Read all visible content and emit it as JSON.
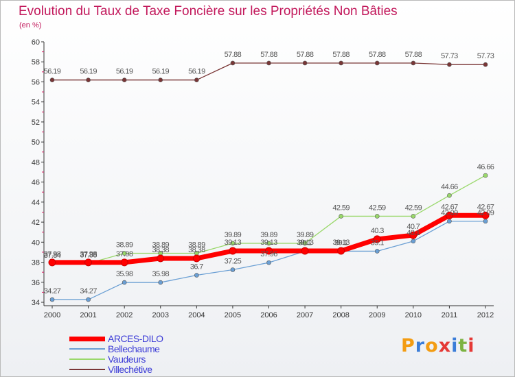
{
  "title": "Evolution du Taux de Taxe Foncière sur les Propriétés Non Bâties",
  "subtitle": "(en %)",
  "logo": {
    "text": "Proxiti",
    "letters": [
      "P",
      "r",
      "o",
      "x",
      "i",
      "t",
      "i"
    ],
    "colors": [
      "#f39c12",
      "#3b7dd8",
      "#f39c12",
      "#e53935",
      "#3b7dd8",
      "#7cb342",
      "#e53935"
    ]
  },
  "chart_data": {
    "type": "line",
    "x": [
      "2000",
      "2001",
      "2002",
      "2003",
      "2004",
      "2005",
      "2006",
      "2007",
      "2008",
      "2009",
      "2010",
      "2011",
      "2012"
    ],
    "ylim": [
      34,
      60
    ],
    "yticks": [
      "34",
      "36",
      "38",
      "40",
      "42",
      "44",
      "46",
      "48",
      "50",
      "52",
      "54",
      "56",
      "58",
      "60"
    ],
    "grid": false,
    "legend_position": "bottom-left",
    "series": [
      {
        "name": "ARCES-DILO",
        "color": "#ff0000",
        "values": [
          37.98,
          37.98,
          37.98,
          38.38,
          38.38,
          39.13,
          39.13,
          39.13,
          39.13,
          40.3,
          40.7,
          42.67,
          42.67
        ],
        "labels": [
          "37.98",
          "37.98",
          "37.98",
          "38.38",
          "38.38",
          "39.13",
          "39.13",
          "39.13",
          "39.13",
          "40.3",
          "40.7",
          "42.67",
          "42.67"
        ]
      },
      {
        "name": "Bellechaume",
        "color": "#6a9fd4",
        "values": [
          34.27,
          34.27,
          35.98,
          35.98,
          36.7,
          37.25,
          37.96,
          39.1,
          39.1,
          39.1,
          40.1,
          42.09,
          42.09
        ],
        "labels": [
          "34.27",
          "34.27",
          "35.98",
          "35.98",
          "36.7",
          "37.25",
          "37.96",
          "39.1",
          "39.1",
          "39.1",
          "40.1",
          "42.09",
          "42.09"
        ]
      },
      {
        "name": "Vaudeurs",
        "color": "#99d86a",
        "values": [
          37.84,
          37.88,
          38.89,
          38.89,
          38.89,
          39.89,
          39.89,
          39.89,
          42.59,
          42.59,
          42.59,
          44.66,
          46.66
        ],
        "labels": [
          "37.84",
          "37.88",
          "38.89",
          "38.89",
          "38.89",
          "39.89",
          "39.89",
          "39.89",
          "42.59",
          "42.59",
          "42.59",
          "44.66",
          "46.66"
        ]
      },
      {
        "name": "Villechétive",
        "color": "#7a3636",
        "values": [
          56.19,
          56.19,
          56.19,
          56.19,
          56.19,
          57.88,
          57.88,
          57.88,
          57.88,
          57.88,
          57.88,
          57.73,
          57.73
        ],
        "labels": [
          "56.19",
          "56.19",
          "56.19",
          "56.19",
          "56.19",
          "57.88",
          "57.88",
          "57.88",
          "57.88",
          "57.88",
          "57.88",
          "57.73",
          "57.73"
        ]
      }
    ]
  }
}
